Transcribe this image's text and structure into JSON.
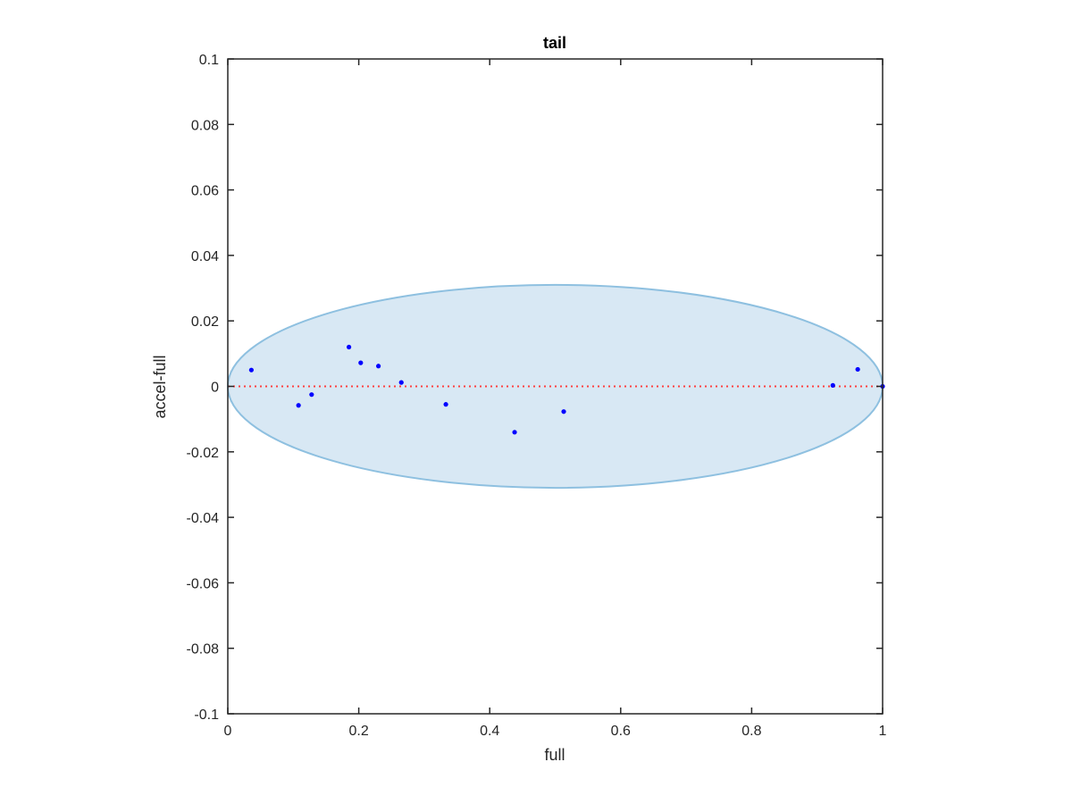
{
  "chart_data": {
    "type": "scatter",
    "title": "tail",
    "xlabel": "full",
    "ylabel": "accel-full",
    "xlim": [
      0,
      1
    ],
    "ylim": [
      -0.1,
      0.1
    ],
    "xticks": [
      0,
      0.2,
      0.4,
      0.6,
      0.8,
      1
    ],
    "xtick_labels": [
      "0",
      "0.2",
      "0.4",
      "0.6",
      "0.8",
      "1"
    ],
    "yticks": [
      -0.1,
      -0.08,
      -0.06,
      -0.04,
      -0.02,
      0,
      0.02,
      0.04,
      0.06,
      0.08,
      0.1
    ],
    "ytick_labels": [
      "-0.1",
      "-0.08",
      "-0.06",
      "-0.04",
      "-0.02",
      "0",
      "0.02",
      "0.04",
      "0.06",
      "0.08",
      "0.1"
    ],
    "grid": false,
    "points": {
      "x": [
        0.036,
        0.108,
        0.128,
        0.185,
        0.203,
        0.23,
        0.265,
        0.333,
        0.438,
        0.513,
        0.924,
        0.962,
        1.0
      ],
      "y": [
        0.005,
        -0.0058,
        -0.0025,
        0.012,
        0.0072,
        0.0062,
        0.0012,
        -0.0055,
        -0.014,
        -0.0077,
        0.0003,
        0.0052,
        0.0
      ]
    },
    "ellipse": {
      "center_x": 0.5,
      "center_y": 0.0,
      "x_radius": 0.5,
      "y_radius": 0.031
    },
    "reference_line": {
      "y": 0
    },
    "colors": {
      "points": "#0000ff",
      "ellipse_fill": "#d8e8f4",
      "ellipse_stroke": "#8ec0e0",
      "reference_line": "#ff4040",
      "axes": "#262626"
    }
  }
}
